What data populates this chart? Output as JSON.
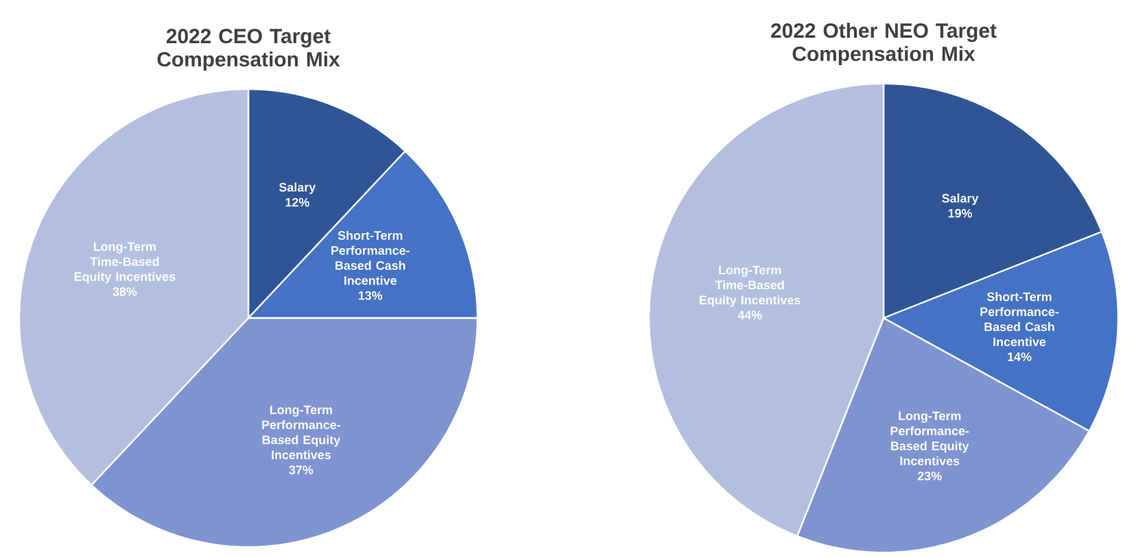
{
  "chart_data": [
    {
      "type": "pie",
      "title": "2022 CEO Target Compensation Mix",
      "categories": [
        "Salary",
        "Short-Term Performance-Based Cash Incentive",
        "Long-Term Performance-Based Equity Incentives",
        "Long-Term Time-Based Equity Incentives"
      ],
      "values": [
        12,
        13,
        37,
        38
      ],
      "value_labels": [
        "12%",
        "13%",
        "37%",
        "38%"
      ],
      "colors": [
        "#2f5597",
        "#4472c4",
        "#7f93d1",
        "#b4bfe0"
      ]
    },
    {
      "type": "pie",
      "title": "2022 Other NEO Target Compensation Mix",
      "categories": [
        "Salary",
        "Short-Term Performance-Based Cash Incentive",
        "Long-Term Performance-Based Equity Incentives",
        "Long-Term Time-Based Equity Incentives"
      ],
      "values": [
        19,
        14,
        23,
        44
      ],
      "value_labels": [
        "19%",
        "14%",
        "23%",
        "44%"
      ],
      "colors": [
        "#2f5597",
        "#4472c4",
        "#7f93d1",
        "#b4bfe0"
      ]
    }
  ]
}
